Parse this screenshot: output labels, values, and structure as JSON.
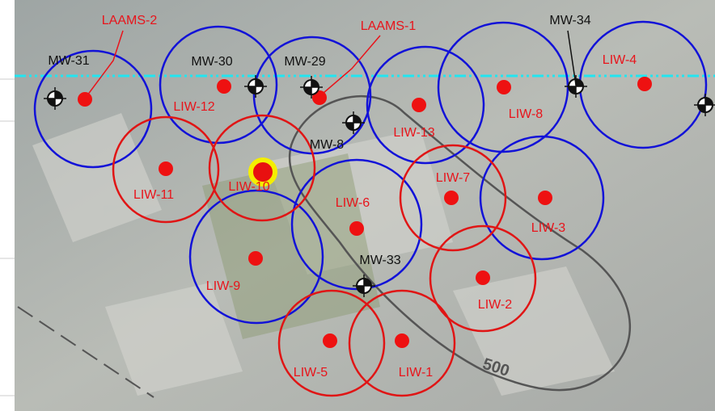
{
  "wells": [
    "LAAMS-2",
    "LAAMS-1",
    "MW-34",
    "MW-31",
    "MW-30",
    "MW-29",
    "LIW-4",
    "LIW-12",
    "LIW-13",
    "LIW-8",
    "MW-8",
    "LIW-7",
    "LIW-11",
    "LIW-10",
    "LIW-6",
    "LIW-3",
    "MW-33",
    "LIW-9",
    "LIW-2",
    "LIW-5",
    "LIW-1"
  ],
  "contour_label": "500"
}
